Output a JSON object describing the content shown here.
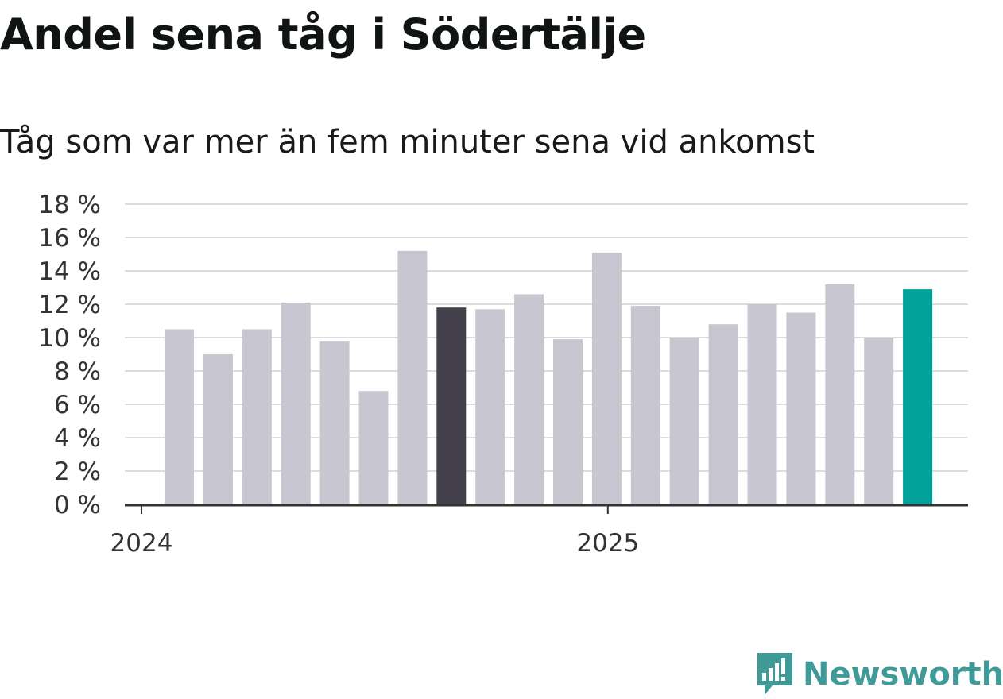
{
  "title": "Andel sena tåg i Södertälje",
  "subtitle": "Tåg som var mer än fem minuter sena vid ankomst",
  "brand": {
    "name": "Newsworthy",
    "color": "#3f9a98",
    "icon": "bar-chart-bubble-icon"
  },
  "colors": {
    "default_bar": "#c8c7d1",
    "highlight_bar": "#44414d",
    "latest_bar": "#00a29a",
    "grid": "#dddddd",
    "axis": "#333333"
  },
  "chart_data": {
    "type": "bar",
    "categories": [
      "2024-01",
      "2024-02",
      "2024-03",
      "2024-04",
      "2024-05",
      "2024-06",
      "2024-07",
      "2024-08",
      "2024-09",
      "2024-10",
      "2024-11",
      "2024-12",
      "2025-01",
      "2025-02",
      "2025-03",
      "2025-04",
      "2025-05",
      "2025-06",
      "2025-07",
      "2025-08"
    ],
    "values": [
      10.5,
      9.0,
      10.5,
      12.1,
      9.8,
      6.8,
      15.2,
      11.8,
      11.7,
      12.6,
      9.9,
      15.1,
      11.9,
      10.0,
      10.8,
      12.0,
      11.5,
      13.2,
      10.0,
      12.9
    ],
    "highlight_index": 7,
    "latest_index": 19,
    "ylim": [
      0,
      18
    ],
    "y_ticks": [
      0,
      2,
      4,
      6,
      8,
      10,
      12,
      14,
      16,
      18
    ],
    "y_tick_suffix": " %",
    "x_tick_labels": [
      {
        "label": "2024",
        "index": 0
      },
      {
        "label": "2025",
        "index": 12
      }
    ],
    "grid": true,
    "xlabel": "",
    "ylabel": ""
  }
}
